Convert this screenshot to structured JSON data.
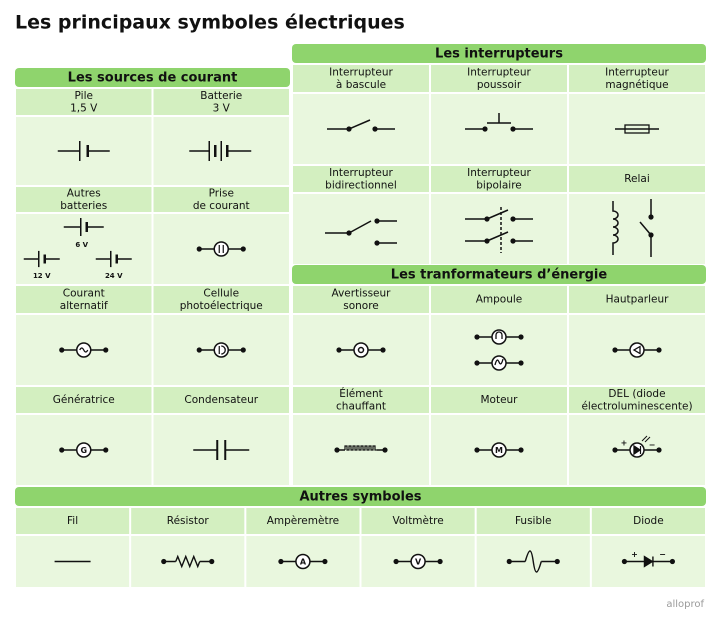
{
  "title": "Les principaux symboles électriques",
  "sections": [
    {
      "title": "Les sources de courant",
      "cells": [
        {
          "label": [
            "Pile",
            "1,5 V"
          ]
        },
        {
          "label": [
            "Batterie",
            "3 V"
          ]
        },
        {
          "label": [
            "Autres",
            "batteries"
          ],
          "symbol_texts": [
            "6 V",
            "12 V",
            "24 V"
          ]
        },
        {
          "label": [
            "Prise",
            "de courant"
          ]
        },
        {
          "label": [
            "Courant",
            "alternatif"
          ]
        },
        {
          "label": [
            "Cellule",
            "photoélectrique"
          ]
        },
        {
          "label": [
            "Génératrice"
          ],
          "symbol_texts": [
            "G"
          ]
        },
        {
          "label": [
            "Condensateur"
          ]
        }
      ]
    },
    {
      "title": "Les interrupteurs",
      "cells": [
        {
          "label": [
            "Interrupteur",
            "à bascule"
          ]
        },
        {
          "label": [
            "Interrupteur",
            "poussoir"
          ]
        },
        {
          "label": [
            "Interrupteur",
            "magnétique"
          ]
        },
        {
          "label": [
            "Interrupteur",
            "bidirectionnel"
          ]
        },
        {
          "label": [
            "Interrupteur",
            "bipolaire"
          ]
        },
        {
          "label": [
            "Relai"
          ]
        }
      ]
    },
    {
      "title": "Les tranformateurs d’énergie",
      "cells": [
        {
          "label": [
            "Avertisseur",
            "sonore"
          ]
        },
        {
          "label": [
            "Ampoule"
          ]
        },
        {
          "label": [
            "Hautparleur"
          ]
        },
        {
          "label": [
            "Élément",
            "chauffant"
          ]
        },
        {
          "label": [
            "Moteur"
          ],
          "symbol_texts": [
            "M"
          ]
        },
        {
          "label": [
            "DEL (diode",
            "électroluminescente)"
          ],
          "symbol_texts": [
            "+",
            "−"
          ]
        }
      ]
    },
    {
      "title": "Autres symboles",
      "cells": [
        {
          "label": [
            "Fil"
          ]
        },
        {
          "label": [
            "Résistor"
          ]
        },
        {
          "label": [
            "Ampèremètre"
          ],
          "symbol_texts": [
            "A"
          ]
        },
        {
          "label": [
            "Voltmètre"
          ],
          "symbol_texts": [
            "V"
          ]
        },
        {
          "label": [
            "Fusible"
          ]
        },
        {
          "label": [
            "Diode"
          ],
          "symbol_texts": [
            "+",
            "−"
          ]
        }
      ]
    }
  ],
  "footer": "alloprof"
}
